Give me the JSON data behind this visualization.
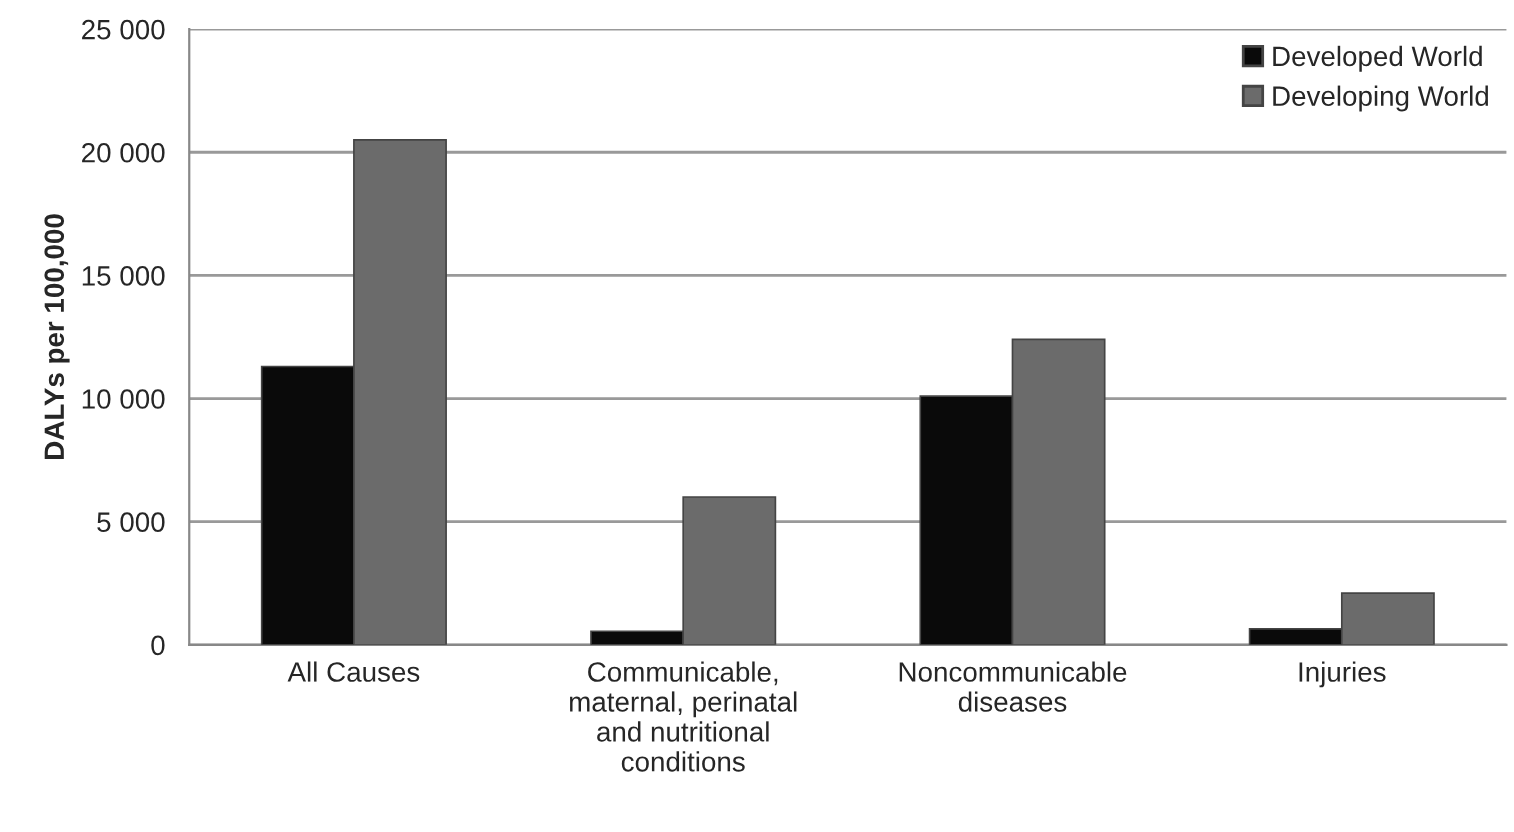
{
  "chart_data": {
    "type": "bar",
    "ylabel": "DALYs per 100,000",
    "categories": [
      "All Causes",
      "Communicable,\nmaternal, perinatal\nand nutritional\nconditions",
      "Noncommunicable\ndiseases",
      "Injuries"
    ],
    "series": [
      {
        "name": "Developed World",
        "color": "#0a0a0a",
        "values": [
          11300,
          550,
          10100,
          650
        ]
      },
      {
        "name": "Developing World",
        "color": "#6b6b6b",
        "values": [
          20500,
          6000,
          12400,
          2100
        ]
      }
    ],
    "ylim": [
      0,
      25000
    ],
    "yticks": [
      {
        "value": 0,
        "label": "0"
      },
      {
        "value": 5000,
        "label": "5 000"
      },
      {
        "value": 10000,
        "label": "10 000"
      },
      {
        "value": 15000,
        "label": "15 000"
      },
      {
        "value": 20000,
        "label": "20 000"
      },
      {
        "value": 25000,
        "label": "25 000"
      }
    ],
    "grid": "y",
    "legend": "top right"
  }
}
